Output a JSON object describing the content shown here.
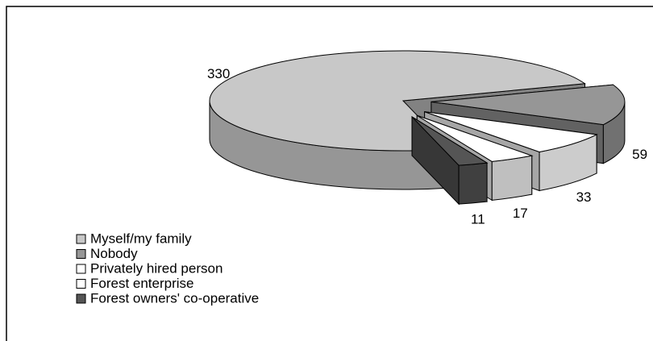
{
  "chart_data": {
    "type": "pie",
    "categories": [
      "Myself/my family",
      "Nobody",
      "Privately hired person",
      "Forest enterprise",
      "Forest owners' co-operative"
    ],
    "values": [
      330,
      59,
      33,
      17,
      11
    ],
    "colors": [
      "#c8c8c8",
      "#969696",
      "#ffffff",
      "#ffffff",
      "#555555"
    ]
  }
}
